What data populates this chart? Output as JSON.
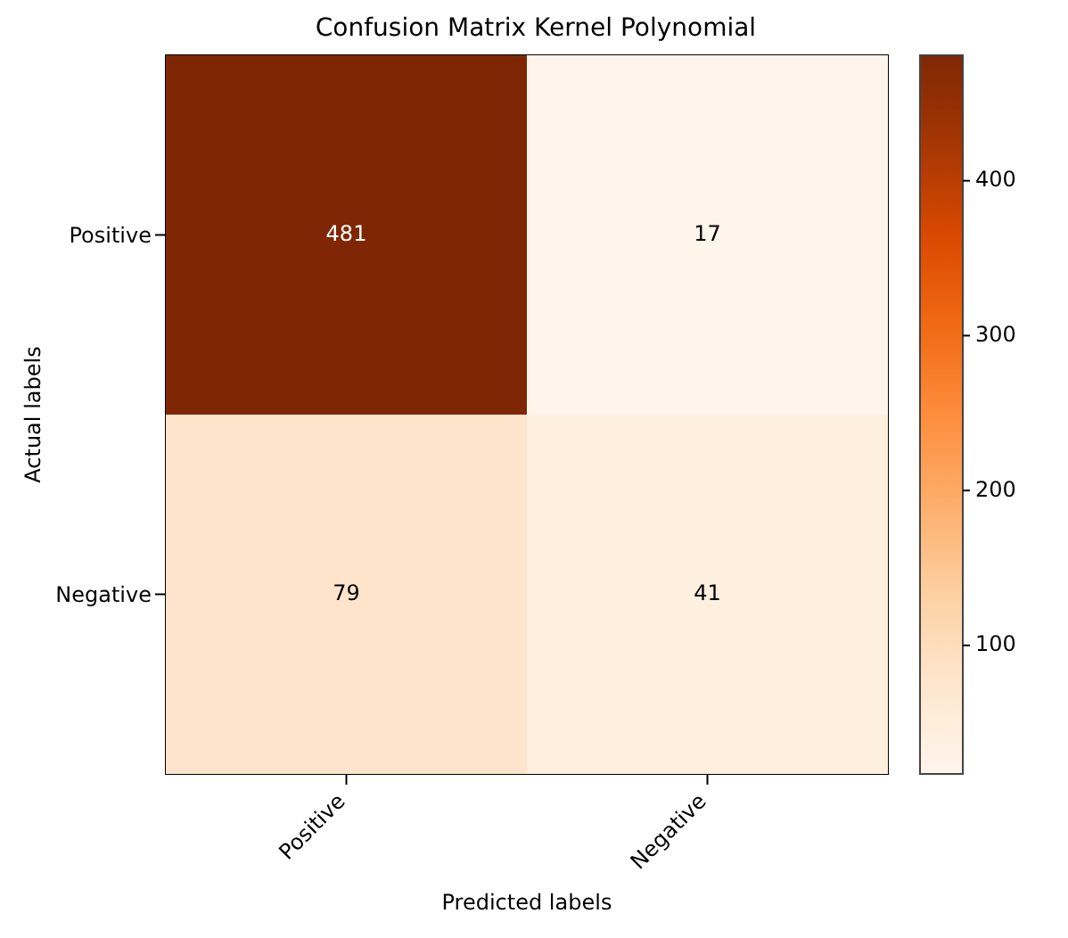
{
  "chart_data": {
    "type": "heatmap",
    "title": "Confusion Matrix Kernel Polynomial",
    "xlabel": "Predicted labels",
    "ylabel": "Actual labels",
    "categories": [
      "Positive",
      "Negative"
    ],
    "y_categories": [
      "Positive",
      "Negative"
    ],
    "cells": [
      [
        481,
        17
      ],
      [
        79,
        41
      ]
    ],
    "data_labels": true,
    "clim": [
      17,
      481
    ],
    "cticks": [
      100,
      200,
      300,
      400
    ]
  }
}
